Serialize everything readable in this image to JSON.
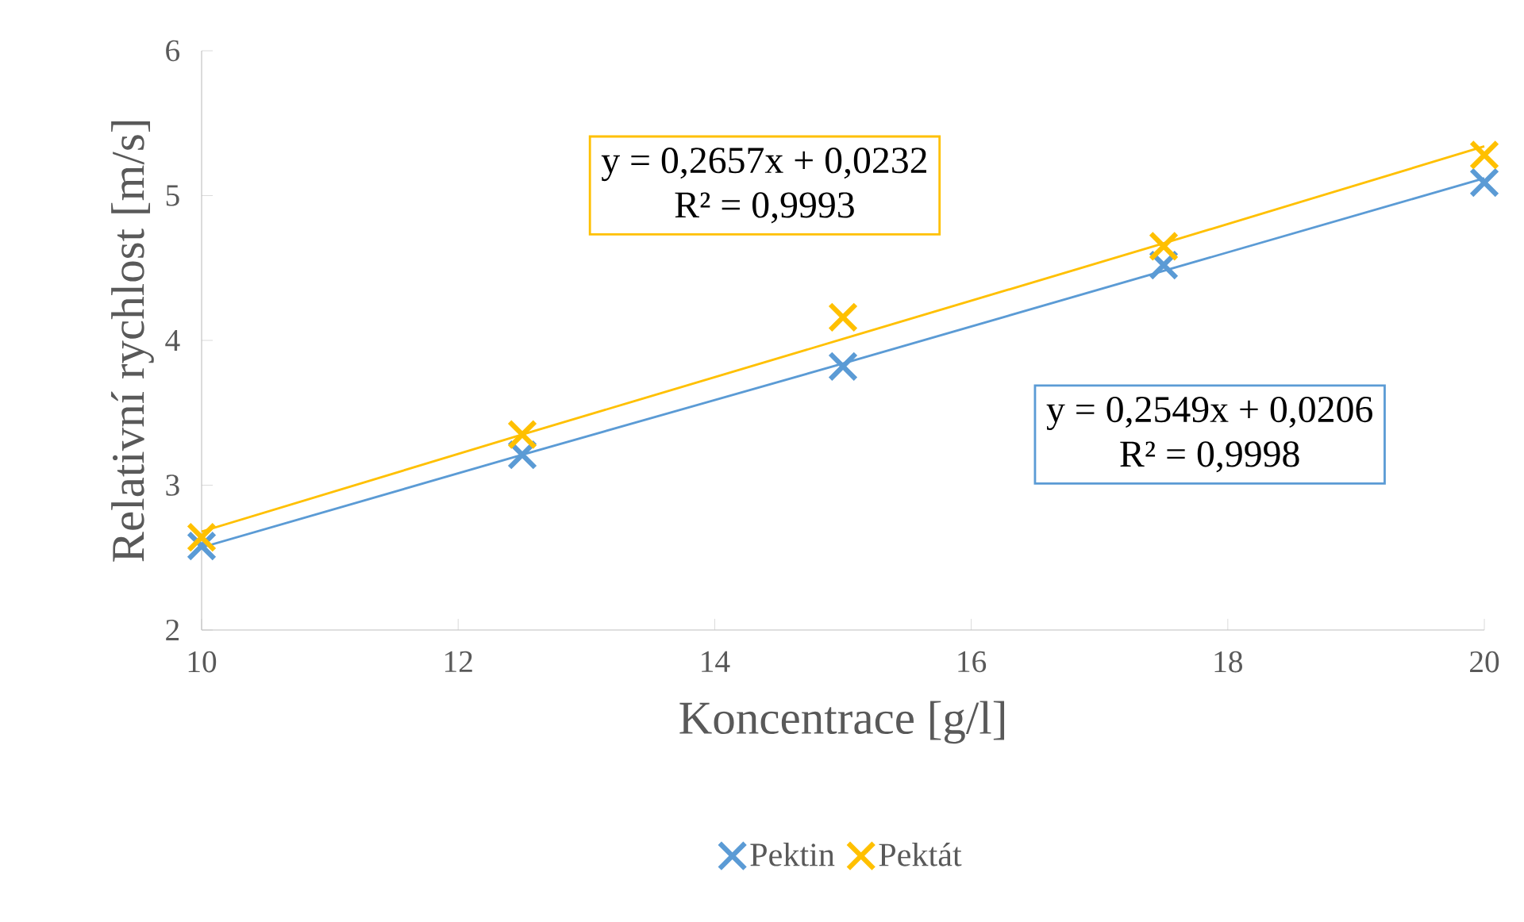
{
  "chart_data": {
    "type": "scatter",
    "xlabel": "Koncentrace [g/l]",
    "ylabel": "Relativní rychlost [m/s]",
    "x": [
      10,
      12.5,
      15,
      17.5,
      20
    ],
    "series": [
      {
        "name": "Pektin",
        "color": "#5b9bd5",
        "values": [
          2.58,
          3.21,
          3.82,
          4.52,
          5.09
        ]
      },
      {
        "name": "Pektát",
        "color": "#ffc000",
        "values": [
          2.64,
          3.35,
          4.16,
          4.65,
          5.28
        ]
      },
      {
        "type": "line",
        "marker": "none",
        "color": "#5b9bd5",
        "values": [
          2.57,
          3.21,
          3.84,
          4.48,
          5.12
        ]
      },
      {
        "type": "line",
        "marker": "none",
        "color": "#ffc000",
        "values": [
          2.68,
          3.35,
          4.01,
          4.67,
          5.34
        ]
      }
    ],
    "annotations": [
      "y = 0,2657x + 0,0232",
      "R² = 0,9993",
      "y = 0,2549x + 0,0206",
      "R² = 0,9998"
    ],
    "xlim": [
      10,
      20
    ],
    "xticks": [
      10,
      12,
      14,
      16,
      18,
      20
    ],
    "ylim": [
      2,
      6
    ],
    "yticks": [
      2,
      3,
      4,
      5,
      6
    ],
    "marker": "cross",
    "grid": false,
    "legend": "bottom"
  }
}
